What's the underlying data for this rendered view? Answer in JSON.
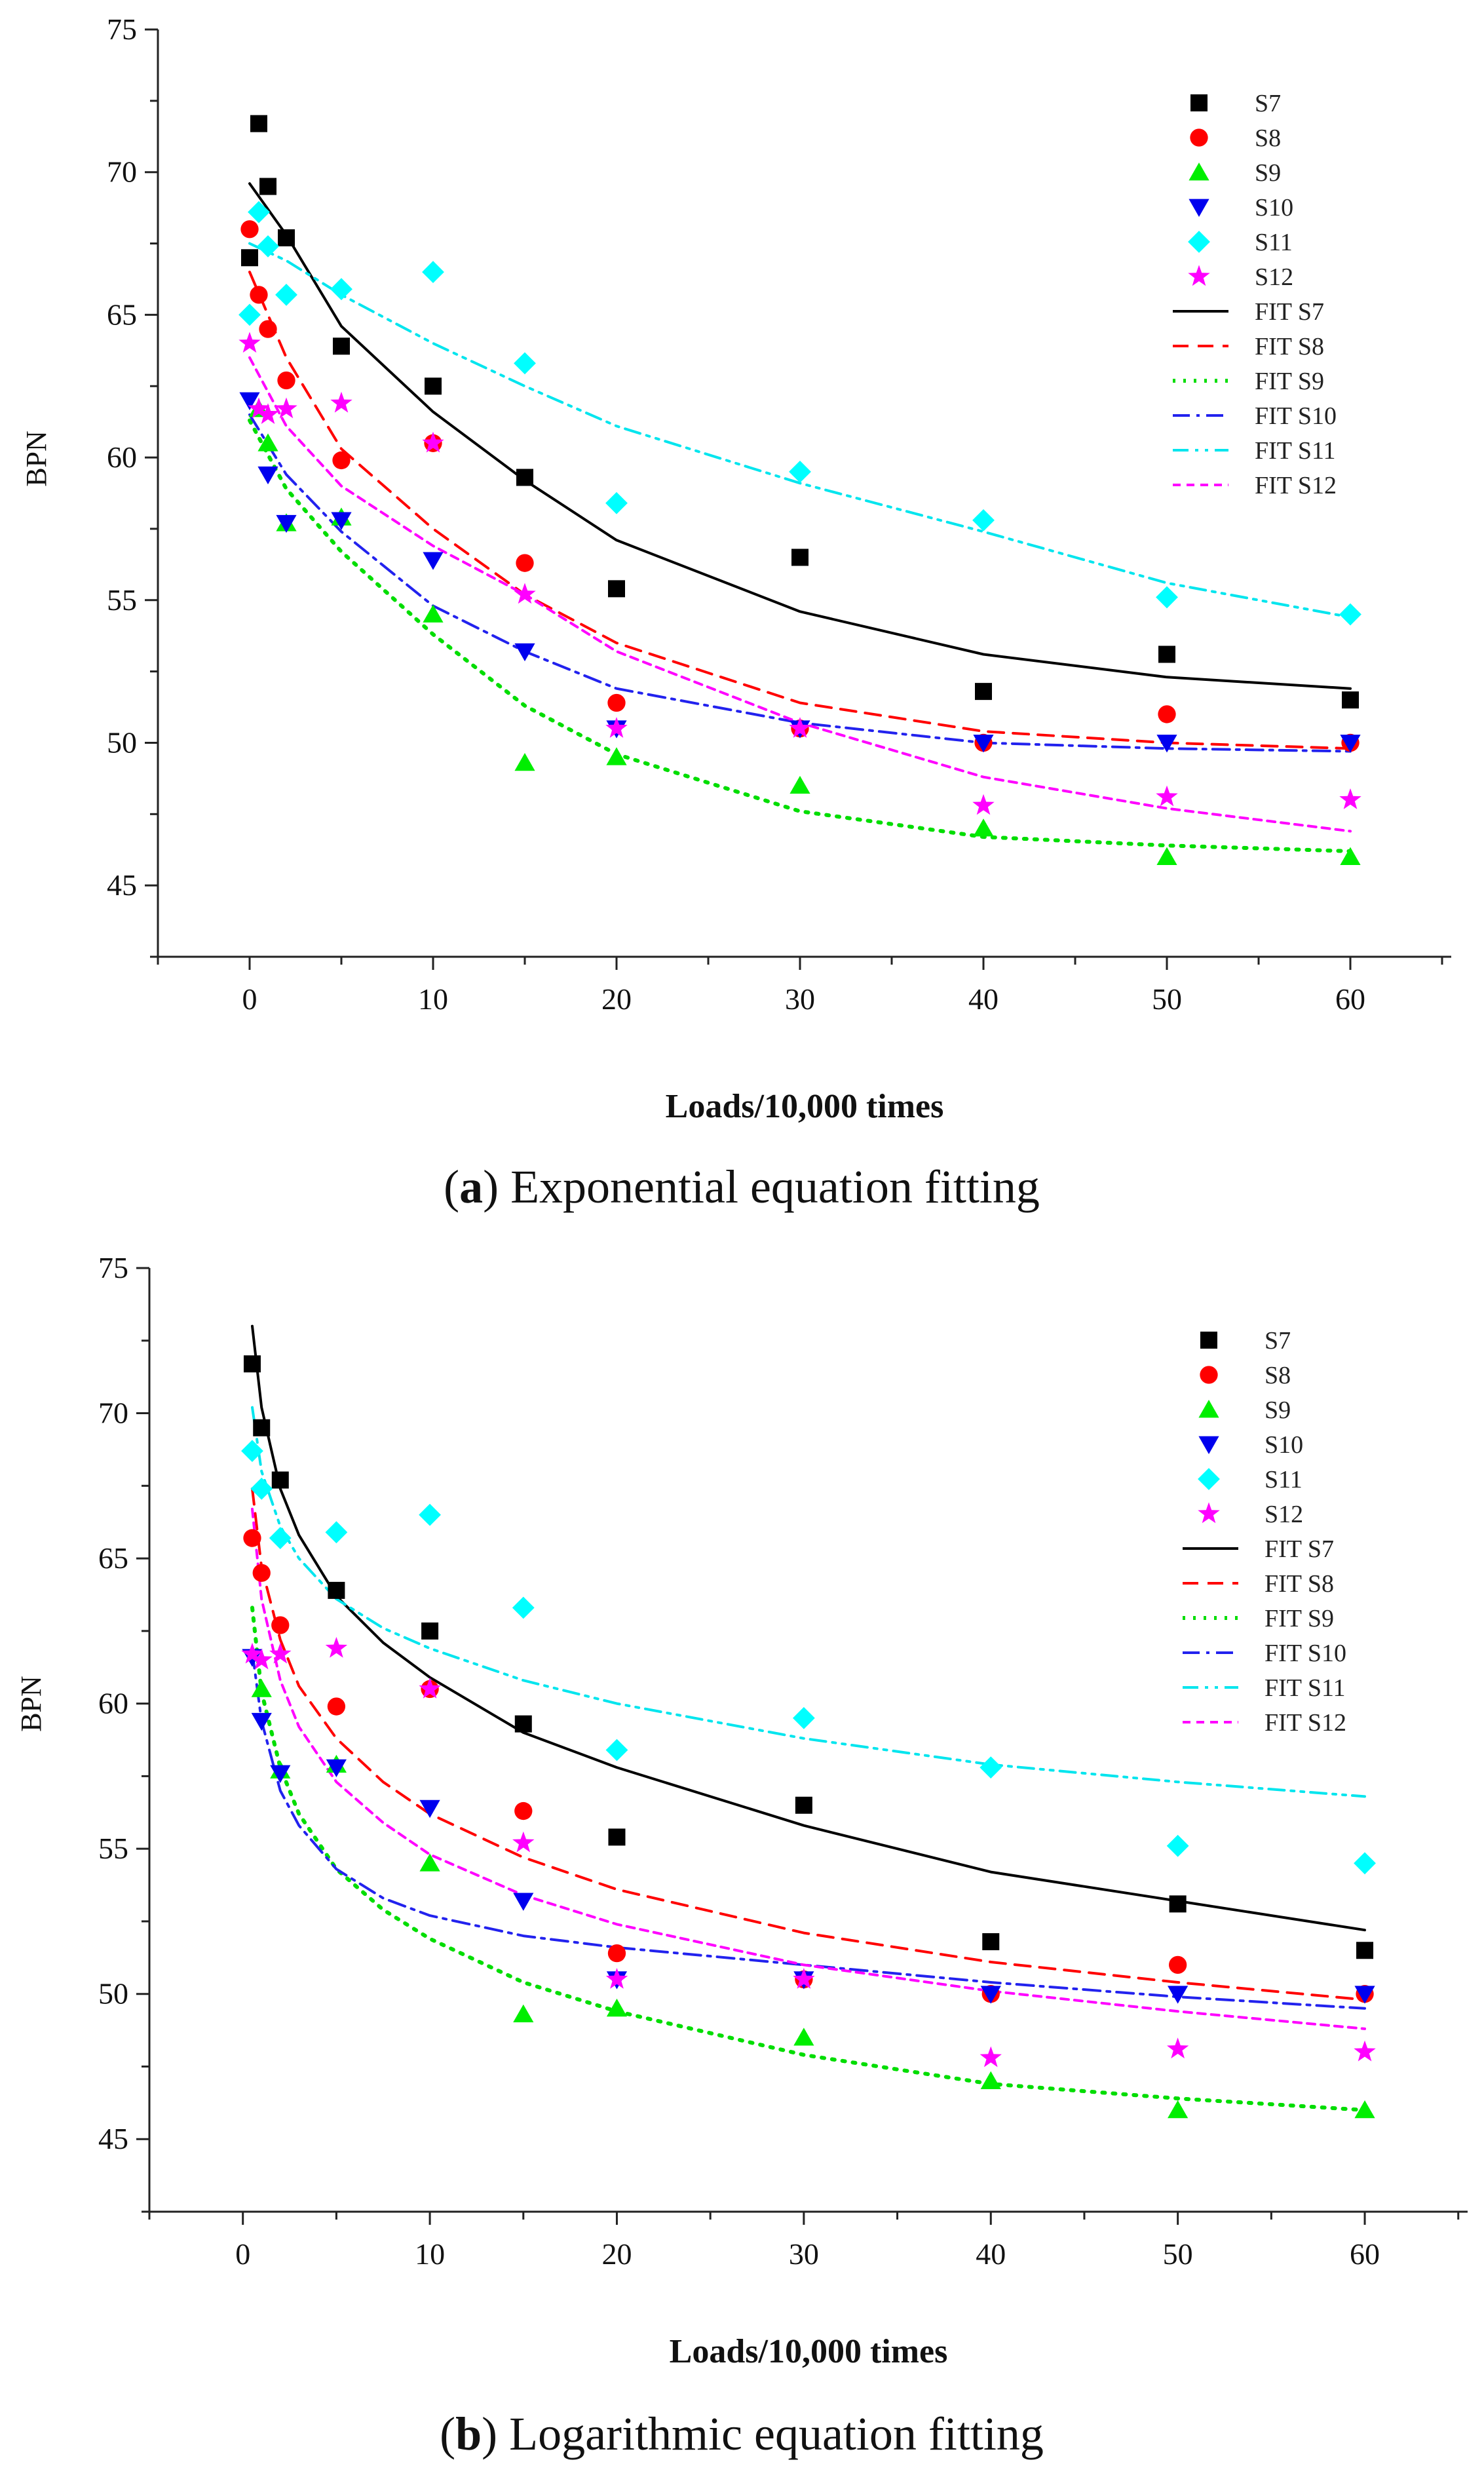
{
  "chart_data": [
    {
      "id": "a",
      "type": "scatter",
      "title": "",
      "caption_letter": "a",
      "caption_text": " Exponential equation fitting",
      "caption_open": "(",
      "caption_close": ")",
      "xlabel": "Loads/10,000 times",
      "ylabel": "BPN",
      "xlim": [
        -5,
        65.5
      ],
      "ylim": [
        42.5,
        75
      ],
      "xticks": [
        0,
        10,
        20,
        30,
        40,
        50,
        60
      ],
      "yticks": [
        45,
        50,
        55,
        60,
        65,
        70,
        75
      ],
      "legend_position": "top-right",
      "series": [
        {
          "name": "S7",
          "color": "#000000",
          "marker": "square",
          "x": [
            0,
            0.5,
            1,
            2,
            5,
            10,
            15,
            20,
            30,
            40,
            50,
            60
          ],
          "y": [
            67,
            71.7,
            69.5,
            67.7,
            63.9,
            62.5,
            59.3,
            55.4,
            56.5,
            51.8,
            53.1,
            51.5
          ]
        },
        {
          "name": "S8",
          "color": "#ff0000",
          "marker": "circle",
          "x": [
            0,
            0.5,
            1,
            2,
            5,
            10,
            15,
            20,
            30,
            40,
            50,
            60
          ],
          "y": [
            68,
            65.7,
            64.5,
            62.7,
            59.9,
            60.5,
            56.3,
            51.4,
            50.5,
            50,
            51,
            50
          ]
        },
        {
          "name": "S9",
          "color": "#00ee00",
          "marker": "triangle-up",
          "x": [
            0.5,
            1,
            2,
            5,
            10,
            15,
            20,
            30,
            40,
            50,
            60
          ],
          "y": [
            61.7,
            60.5,
            57.7,
            57.9,
            54.5,
            49.3,
            49.5,
            48.5,
            47,
            46,
            46
          ]
        },
        {
          "name": "S10",
          "color": "#0000ee",
          "marker": "triangle-down",
          "x": [
            0,
            1,
            2,
            5,
            10,
            15,
            20,
            30,
            40,
            50,
            60
          ],
          "y": [
            62,
            59.4,
            57.7,
            57.8,
            56.4,
            53.2,
            50.5,
            50.5,
            50,
            50,
            50
          ]
        },
        {
          "name": "S11",
          "color": "#00ffff",
          "marker": "diamond",
          "x": [
            0,
            0.5,
            1,
            2,
            5,
            10,
            15,
            20,
            30,
            40,
            50,
            60
          ],
          "y": [
            65,
            68.6,
            67.4,
            65.7,
            65.9,
            66.5,
            63.3,
            58.4,
            59.5,
            57.8,
            55.1,
            54.5
          ]
        },
        {
          "name": "S12",
          "color": "#ff00ff",
          "marker": "star",
          "x": [
            0,
            0.5,
            1,
            2,
            5,
            10,
            15,
            20,
            30,
            40,
            50,
            60
          ],
          "y": [
            64,
            61.7,
            61.5,
            61.7,
            61.9,
            60.5,
            55.2,
            50.5,
            50.5,
            47.8,
            48.1,
            48
          ]
        }
      ],
      "fits": [
        {
          "name": "FIT  S7",
          "color": "#000000",
          "dash": "",
          "width": 4,
          "x": [
            0,
            2,
            5,
            10,
            15,
            20,
            30,
            40,
            50,
            60
          ],
          "y": [
            69.6,
            67.8,
            64.6,
            61.6,
            59.2,
            57.1,
            54.6,
            53.1,
            52.3,
            51.9
          ]
        },
        {
          "name": "FIT  S8",
          "color": "#ff0000",
          "dash": "24,14",
          "width": 4,
          "x": [
            0,
            2,
            5,
            10,
            15,
            20,
            30,
            40,
            50,
            60
          ],
          "y": [
            66.5,
            63.5,
            60.3,
            57.5,
            55.2,
            53.5,
            51.4,
            50.4,
            50.0,
            49.8
          ]
        },
        {
          "name": "FIT  S9",
          "color": "#00dd00",
          "dash": "4,12",
          "width": 6,
          "x": [
            0,
            2,
            5,
            10,
            15,
            20,
            30,
            40,
            50,
            60
          ],
          "y": [
            61.3,
            58.9,
            56.7,
            53.8,
            51.3,
            49.6,
            47.6,
            46.7,
            46.4,
            46.2
          ]
        },
        {
          "name": "FIT  S10",
          "color": "#2222ee",
          "dash": "26,10,5,10",
          "width": 4,
          "x": [
            0,
            2,
            5,
            10,
            15,
            20,
            30,
            40,
            50,
            60
          ],
          "y": [
            61.5,
            59.4,
            57.4,
            54.8,
            53.2,
            51.9,
            50.7,
            50.0,
            49.8,
            49.7
          ]
        },
        {
          "name": "FIT  S11",
          "color": "#00e5ee",
          "dash": "24,10,5,10,5,10",
          "width": 4,
          "x": [
            0,
            2,
            5,
            10,
            15,
            20,
            30,
            40,
            50,
            60
          ],
          "y": [
            67.5,
            66.9,
            65.7,
            64.0,
            62.5,
            61.1,
            59.1,
            57.4,
            55.6,
            54.4
          ]
        },
        {
          "name": "FIT  S12",
          "color": "#ff00ff",
          "dash": "12,9",
          "width": 4,
          "x": [
            0,
            2,
            5,
            10,
            15,
            20,
            30,
            40,
            50,
            60
          ],
          "y": [
            63.5,
            61.1,
            59.0,
            56.9,
            55.2,
            53.2,
            50.7,
            48.8,
            47.7,
            46.9
          ]
        }
      ]
    },
    {
      "id": "b",
      "type": "scatter",
      "title": "",
      "caption_letter": "b",
      "caption_text": " Logarithmic equation fitting",
      "caption_open": "(",
      "caption_close": ")",
      "xlabel": "Loads/10,000 times",
      "ylabel": "BPN",
      "xlim": [
        -5,
        65.5
      ],
      "ylim": [
        42.5,
        75
      ],
      "xticks": [
        0,
        10,
        20,
        30,
        40,
        50,
        60
      ],
      "yticks": [
        45,
        50,
        55,
        60,
        65,
        70,
        75
      ],
      "legend_position": "top-right",
      "series": [
        {
          "name": "S7",
          "color": "#000000",
          "marker": "square",
          "x": [
            0.5,
            1,
            2,
            5,
            10,
            15,
            20,
            30,
            40,
            50,
            60
          ],
          "y": [
            71.7,
            69.5,
            67.7,
            63.9,
            62.5,
            59.3,
            55.4,
            56.5,
            51.8,
            53.1,
            51.5
          ]
        },
        {
          "name": "S8",
          "color": "#ff0000",
          "marker": "circle",
          "x": [
            0.5,
            1,
            2,
            5,
            10,
            15,
            20,
            30,
            40,
            50,
            60
          ],
          "y": [
            65.7,
            64.5,
            62.7,
            59.9,
            60.5,
            56.3,
            51.4,
            50.5,
            50,
            51,
            50
          ]
        },
        {
          "name": "S9",
          "color": "#00ee00",
          "marker": "triangle-up",
          "x": [
            1,
            2,
            5,
            10,
            15,
            20,
            30,
            40,
            50,
            60
          ],
          "y": [
            60.5,
            57.7,
            57.9,
            54.5,
            49.3,
            49.5,
            48.5,
            47,
            46,
            46
          ]
        },
        {
          "name": "S10",
          "color": "#0000ee",
          "marker": "triangle-down",
          "x": [
            0.5,
            1,
            2,
            5,
            10,
            15,
            20,
            30,
            40,
            50,
            60
          ],
          "y": [
            61.6,
            59.4,
            57.6,
            57.8,
            56.4,
            53.2,
            50.5,
            50.5,
            50,
            50,
            50
          ]
        },
        {
          "name": "S11",
          "color": "#00ffff",
          "marker": "diamond",
          "x": [
            0.5,
            1,
            2,
            5,
            10,
            15,
            20,
            30,
            40,
            50,
            60
          ],
          "y": [
            68.7,
            67.4,
            65.7,
            65.9,
            66.5,
            63.3,
            58.4,
            59.5,
            57.8,
            55.1,
            54.5
          ]
        },
        {
          "name": "S12",
          "color": "#ff00ff",
          "marker": "star",
          "x": [
            0.5,
            1,
            2,
            5,
            10,
            15,
            20,
            30,
            40,
            50,
            60
          ],
          "y": [
            61.7,
            61.5,
            61.7,
            61.9,
            60.5,
            55.2,
            50.5,
            50.5,
            47.8,
            48.1,
            48
          ]
        }
      ],
      "fits": [
        {
          "name": "FIT  S7",
          "color": "#000000",
          "dash": "",
          "width": 4,
          "x": [
            0.5,
            1,
            2,
            3,
            5,
            7.5,
            10,
            15,
            20,
            30,
            40,
            50,
            60
          ],
          "y": [
            73.0,
            70.2,
            67.4,
            65.8,
            63.7,
            62.1,
            60.9,
            59.0,
            57.8,
            55.8,
            54.2,
            53.2,
            52.2
          ]
        },
        {
          "name": "FIT  S8",
          "color": "#ff0000",
          "dash": "24,14",
          "width": 4,
          "x": [
            0.5,
            1,
            2,
            3,
            5,
            7.5,
            10,
            15,
            20,
            30,
            40,
            50,
            60
          ],
          "y": [
            67.4,
            64.7,
            62.2,
            60.6,
            58.8,
            57.3,
            56.2,
            54.7,
            53.6,
            52.1,
            51.1,
            50.4,
            49.8
          ]
        },
        {
          "name": "FIT  S9",
          "color": "#00dd00",
          "dash": "4,12",
          "width": 6,
          "x": [
            0.5,
            1,
            2,
            3,
            5,
            7.5,
            10,
            15,
            20,
            30,
            40,
            50,
            60
          ],
          "y": [
            63.3,
            60.4,
            57.8,
            56.2,
            54.3,
            52.9,
            51.9,
            50.4,
            49.4,
            47.9,
            46.9,
            46.4,
            46.0
          ]
        },
        {
          "name": "FIT  S10",
          "color": "#2222ee",
          "dash": "26,10,5,10",
          "width": 4,
          "x": [
            0.5,
            1,
            2,
            3,
            5,
            7.5,
            10,
            15,
            20,
            30,
            40,
            50,
            60
          ],
          "y": [
            61.8,
            59.4,
            57.0,
            55.8,
            54.3,
            53.3,
            52.7,
            52.0,
            51.6,
            51.0,
            50.4,
            49.9,
            49.5
          ]
        },
        {
          "name": "FIT  S11",
          "color": "#00e5ee",
          "dash": "24,10,5,10,5,10",
          "width": 4,
          "x": [
            0.5,
            1,
            2,
            3,
            5,
            7.5,
            10,
            15,
            20,
            30,
            40,
            50,
            60
          ],
          "y": [
            70.2,
            68.0,
            66.1,
            65.0,
            63.6,
            62.6,
            61.9,
            60.8,
            60.0,
            58.8,
            57.9,
            57.3,
            56.8
          ]
        },
        {
          "name": "FIT  S12",
          "color": "#ff00ff",
          "dash": "12,9",
          "width": 4,
          "x": [
            0.5,
            1,
            2,
            3,
            5,
            7.5,
            10,
            15,
            20,
            30,
            40,
            50,
            60
          ],
          "y": [
            66.7,
            63.6,
            60.8,
            59.2,
            57.3,
            55.9,
            54.8,
            53.4,
            52.4,
            51.0,
            50.1,
            49.4,
            48.8
          ]
        }
      ]
    }
  ]
}
